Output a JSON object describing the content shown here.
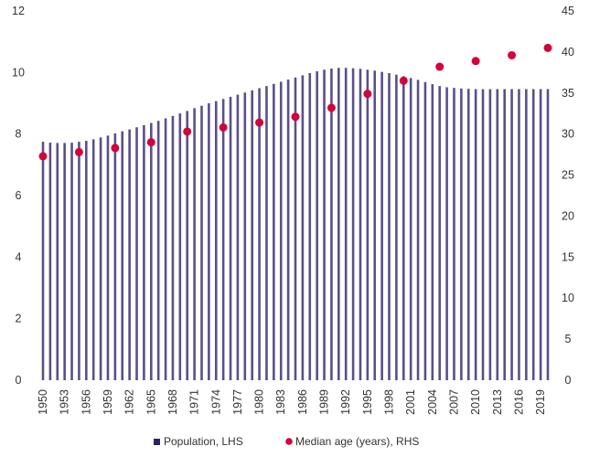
{
  "chart_data": {
    "type": "bar",
    "title": "",
    "x": [
      1950,
      1951,
      1952,
      1953,
      1954,
      1955,
      1956,
      1957,
      1958,
      1959,
      1960,
      1961,
      1962,
      1963,
      1964,
      1965,
      1966,
      1967,
      1968,
      1969,
      1970,
      1971,
      1972,
      1973,
      1974,
      1975,
      1976,
      1977,
      1978,
      1979,
      1980,
      1981,
      1982,
      1983,
      1984,
      1985,
      1986,
      1987,
      1988,
      1989,
      1990,
      1991,
      1992,
      1993,
      1994,
      1995,
      1996,
      1997,
      1998,
      1999,
      2000,
      2001,
      2002,
      2003,
      2004,
      2005,
      2006,
      2007,
      2008,
      2009,
      2010,
      2011,
      2012,
      2013,
      2014,
      2015,
      2016,
      2017,
      2018,
      2019,
      2020
    ],
    "x_tick_labels": [
      "1950",
      "1953",
      "1956",
      "1959",
      "1962",
      "1965",
      "1968",
      "1971",
      "1974",
      "1977",
      "1980",
      "1983",
      "1986",
      "1989",
      "1992",
      "1995",
      "1998",
      "2001",
      "2004",
      "2007",
      "2010",
      "2013",
      "2016",
      "2019"
    ],
    "y_left_ticks": [
      "0",
      "2",
      "4",
      "6",
      "8",
      "10",
      "12"
    ],
    "y_right_ticks": [
      "0",
      "5",
      "10",
      "15",
      "20",
      "25",
      "30",
      "35",
      "40",
      "45"
    ],
    "ylim_left": [
      0,
      12
    ],
    "ylim_right": [
      0,
      45
    ],
    "series": [
      {
        "name": "Population, LHS",
        "type": "bar",
        "axis": "left",
        "color": "#5b4f8a",
        "values": [
          7.75,
          7.72,
          7.71,
          7.71,
          7.72,
          7.75,
          7.78,
          7.83,
          7.89,
          7.95,
          8.02,
          8.09,
          8.15,
          8.22,
          8.29,
          8.36,
          8.43,
          8.51,
          8.59,
          8.67,
          8.75,
          8.84,
          8.92,
          9.0,
          9.07,
          9.14,
          9.21,
          9.28,
          9.35,
          9.42,
          9.49,
          9.56,
          9.63,
          9.7,
          9.77,
          9.84,
          9.91,
          9.98,
          10.04,
          10.09,
          10.13,
          10.15,
          10.15,
          10.14,
          10.12,
          10.09,
          10.06,
          10.02,
          9.98,
          9.93,
          9.88,
          9.82,
          9.76,
          9.69,
          9.62,
          9.56,
          9.52,
          9.5,
          9.48,
          9.47,
          9.46,
          9.46,
          9.46,
          9.46,
          9.46,
          9.46,
          9.46,
          9.46,
          9.46,
          9.46,
          9.46
        ]
      },
      {
        "name": "Median age (years), RHS",
        "type": "scatter",
        "axis": "right",
        "color": "#d5003a",
        "x": [
          1950,
          1955,
          1960,
          1965,
          1970,
          1975,
          1980,
          1985,
          1990,
          1995,
          2000,
          2005,
          2010,
          2015,
          2020
        ],
        "values": [
          27.3,
          27.8,
          28.3,
          29.0,
          30.3,
          30.8,
          31.4,
          32.1,
          33.2,
          34.9,
          36.5,
          38.2,
          38.9,
          39.6,
          40.5
        ]
      }
    ],
    "legend": {
      "position": "bottom",
      "items": [
        {
          "label": "Population, LHS",
          "marker": "square",
          "color": "#2d2160"
        },
        {
          "label": "Median age (years), RHS",
          "marker": "circle",
          "color": "#d5003a"
        }
      ]
    },
    "grid": false
  }
}
